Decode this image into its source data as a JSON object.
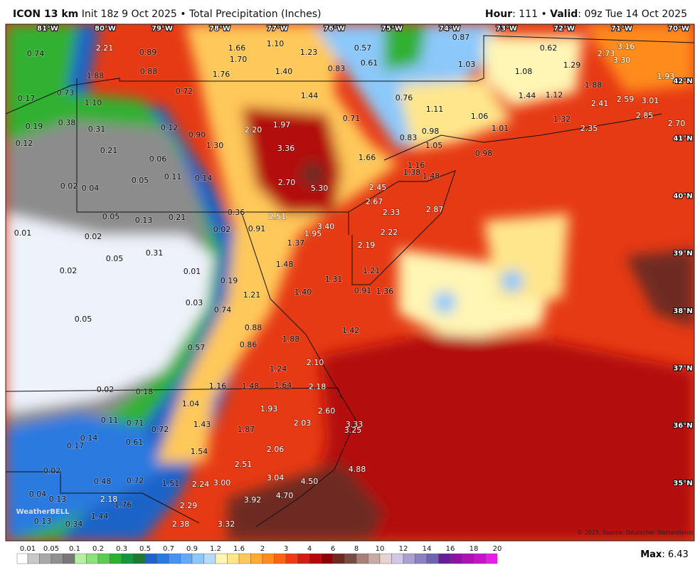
{
  "header": {
    "title": "ICON 13 km",
    "init": "Init 18z 9 Oct 2025",
    "bullet": "•",
    "field": "Total Precipitation (Inches)",
    "hour_label": "Hour",
    "hour": ": 111",
    "valid_label": "Valid",
    "valid": ": 09z Tue 14 Oct 2025"
  },
  "map": {
    "lon_labels": [
      "81°W",
      "80°W",
      "79°W",
      "78°W",
      "77°W",
      "76°W",
      "75°W",
      "74°W",
      "73°W",
      "72°W",
      "71°W",
      "70°W"
    ],
    "lat_labels": [
      "42°N",
      "41°N",
      "40°N",
      "39°N",
      "38°N",
      "37°N",
      "36°N",
      "35°N"
    ],
    "values": [
      "0.74",
      "2.21",
      "0.89",
      "1.66",
      "1.10",
      "1.70",
      "1.23",
      "0.57",
      "0.87",
      "0.62",
      "2.73",
      "3.16",
      "3.30",
      "1.88",
      "0.88",
      "1.76",
      "1.40",
      "0.83",
      "0.61",
      "1.03",
      "1.08",
      "1.29",
      "1.93",
      "0.72",
      "1.44",
      "0.76",
      "1.44",
      "1.12",
      "1.88",
      "0.17",
      "0.73",
      "1.10",
      "2.41",
      "2.59",
      "3.01",
      "2.85",
      "0.71",
      "1.11",
      "1.06",
      "1.32",
      "0.19",
      "0.38",
      "0.31",
      "0.12",
      "0.90",
      "2.20",
      "1.97",
      "0.83",
      "0.98",
      "1.01",
      "2.35",
      "2.70",
      "0.12",
      "0.21",
      "1.30",
      "3.36",
      "1.05",
      "1.66",
      "0.98",
      "0.06",
      "1.16",
      "1.38",
      "1.48",
      "0.05",
      "0.11",
      "0.14",
      "2.70",
      "5.30",
      "2.45",
      "0.02",
      "0.04",
      "2.67",
      "2.87",
      "0.05",
      "0.21",
      "0.36",
      "2.51",
      "2.33",
      "0.13",
      "3.40",
      "0.01",
      "0.02",
      "0.02",
      "0.91",
      "1.95",
      "2.22",
      "1.37",
      "2.19",
      "0.31",
      "0.05",
      "1.48",
      "1.21",
      "0.02",
      "0.01",
      "1.31",
      "0.19",
      "1.40",
      "0.91",
      "1.36",
      "1.21",
      "0.03",
      "0.74",
      "0.05",
      "0.88",
      "1.42",
      "1.88",
      "0.86",
      "0.57",
      "2.10",
      "1.24",
      "0.02",
      "0.18",
      "1.16",
      "1.48",
      "1.64",
      "2.18",
      "1.04",
      "1.93",
      "2.60",
      "0.11",
      "0.71",
      "1.43",
      "2.03",
      "3.33",
      "0.72",
      "1.87",
      "3.25",
      "0.14",
      "0.17",
      "0.61",
      "1.54",
      "2.06",
      "2.51",
      "4.88",
      "0.02",
      "3.04",
      "0.72",
      "1.51",
      "2.24",
      "3.00",
      "4.50",
      "0.48",
      "4.70",
      "0.04",
      "0.13",
      "2.18",
      "1.76",
      "3.92",
      "2.29",
      "0.13",
      "0.34",
      "1.44",
      "2.38",
      "3.32"
    ],
    "credit": "© 2025. Source: Deutscher Wetterdienst",
    "logo": "WeatherBELL"
  },
  "legend": {
    "ticks": [
      "0.01",
      "0.05",
      "0.1",
      "0.2",
      "0.3",
      "0.5",
      "0.7",
      "0.9",
      "1.2",
      "1.6",
      "2",
      "3",
      "4",
      "6",
      "8",
      "10",
      "12",
      "14",
      "16",
      "18",
      "20"
    ],
    "colors": [
      "#ffffff",
      "#c8c8c8",
      "#a8a8a8",
      "#909090",
      "#787878",
      "#b4f0a0",
      "#8ce27a",
      "#5ccc50",
      "#30b030",
      "#16963c",
      "#1e7a32",
      "#1e64c8",
      "#2a7ae0",
      "#4694f0",
      "#64aaf5",
      "#8cc8fa",
      "#b4dcfa",
      "#fff5b4",
      "#ffe68c",
      "#ffc85a",
      "#ffaa32",
      "#ff8c1e",
      "#ff6414",
      "#f03c14",
      "#d21e14",
      "#b40a0a",
      "#8c0000",
      "#6e2a22",
      "#7a4a44",
      "#a8807a",
      "#c8aaa4",
      "#e6d2d2",
      "#d2c8e6",
      "#aaa0d2",
      "#8c82c3",
      "#6e64b4",
      "#6a1e96",
      "#8c14a0",
      "#aa14b4",
      "#c814c8",
      "#e61ee6"
    ]
  },
  "max": {
    "label": "Max",
    "value": ": 6.43"
  }
}
